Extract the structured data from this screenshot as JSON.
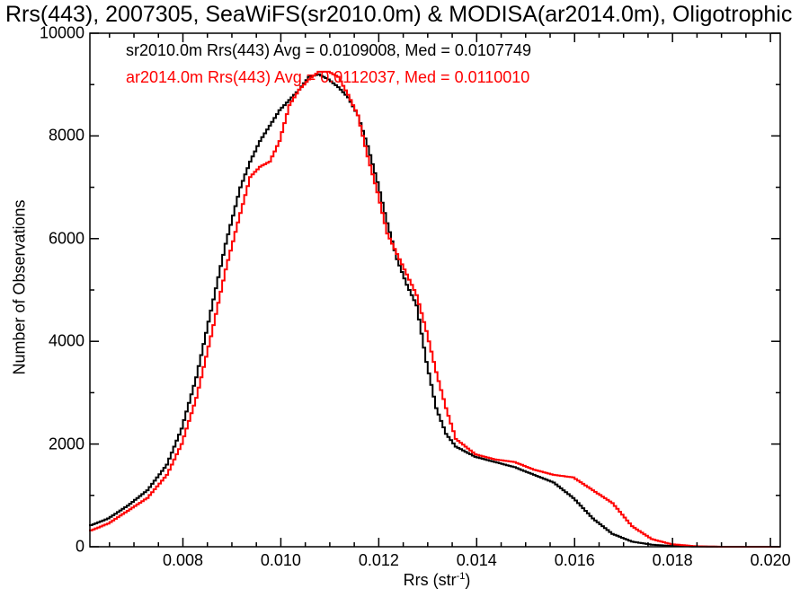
{
  "chart_data": {
    "type": "line",
    "title": "Rrs(443), 2007305, SeaWiFS(sr2010.0m) & MODISA(ar2014.0m), Oligotrophic",
    "xlabel_main": "Rrs (str",
    "xlabel_sup": "-1",
    "xlabel_close": ")",
    "ylabel": "Number of Observations",
    "xlim": [
      0.0061,
      0.0202
    ],
    "ylim": [
      0,
      10000
    ],
    "xticks": [
      "0.008",
      "0.010",
      "0.012",
      "0.014",
      "0.016",
      "0.018",
      "0.020"
    ],
    "yticks": [
      "0",
      "2000",
      "4000",
      "6000",
      "8000",
      "10000"
    ],
    "xtick_values": [
      0.008,
      0.01,
      0.012,
      0.014,
      0.016,
      0.018,
      0.02
    ],
    "ytick_values": [
      0,
      2000,
      4000,
      6000,
      8000,
      10000
    ],
    "grid": false,
    "legend": "top-left",
    "series": [
      {
        "name": "sr2010.0m Rrs(443) Avg = 0.0109008, Med = 0.0107749",
        "color": "#000000",
        "x": [
          0.0061,
          0.0065,
          0.0069,
          0.0073,
          0.0077,
          0.008,
          0.0083,
          0.0086,
          0.0089,
          0.0092,
          0.0094,
          0.0096,
          0.0098,
          0.01,
          0.0102,
          0.0104,
          0.0106,
          0.0108,
          0.011,
          0.0112,
          0.0114,
          0.0116,
          0.0118,
          0.012,
          0.0122,
          0.0124,
          0.0126,
          0.0128,
          0.013,
          0.0132,
          0.0134,
          0.0136,
          0.014,
          0.0144,
          0.0148,
          0.0152,
          0.0156,
          0.016,
          0.0164,
          0.0168,
          0.0172,
          0.0176,
          0.018,
          0.0185,
          0.019,
          0.0202
        ],
        "y": [
          400,
          550,
          800,
          1100,
          1600,
          2300,
          3300,
          4600,
          5900,
          7000,
          7500,
          7900,
          8200,
          8500,
          8700,
          8900,
          9150,
          9200,
          9100,
          8950,
          8750,
          8400,
          7800,
          7100,
          6300,
          5600,
          5100,
          4700,
          3600,
          2700,
          2200,
          1950,
          1750,
          1650,
          1550,
          1400,
          1250,
          950,
          550,
          250,
          100,
          40,
          15,
          5,
          0,
          0
        ]
      },
      {
        "name": "ar2014.0m Rrs(443) Avg = 0.0112037, Med = 0.0110010",
        "color": "#ff0000",
        "x": [
          0.0061,
          0.0065,
          0.0069,
          0.0073,
          0.0077,
          0.008,
          0.0083,
          0.0086,
          0.0089,
          0.0092,
          0.0094,
          0.0096,
          0.0098,
          0.01,
          0.0102,
          0.0104,
          0.0106,
          0.0108,
          0.011,
          0.0112,
          0.0114,
          0.0116,
          0.0118,
          0.012,
          0.0122,
          0.0124,
          0.0126,
          0.0128,
          0.013,
          0.0132,
          0.0134,
          0.0136,
          0.014,
          0.0144,
          0.0148,
          0.0152,
          0.0156,
          0.016,
          0.0164,
          0.0168,
          0.0172,
          0.0176,
          0.018,
          0.0185,
          0.019,
          0.0202
        ],
        "y": [
          300,
          450,
          700,
          950,
          1400,
          2000,
          2900,
          4100,
          5400,
          6500,
          7200,
          7400,
          7500,
          7900,
          8600,
          8900,
          9100,
          9250,
          9250,
          9150,
          8800,
          8400,
          7600,
          6900,
          6100,
          5700,
          5300,
          4900,
          4200,
          3400,
          2700,
          2100,
          1800,
          1700,
          1650,
          1500,
          1400,
          1350,
          1100,
          850,
          400,
          150,
          50,
          10,
          0,
          0
        ]
      }
    ]
  }
}
